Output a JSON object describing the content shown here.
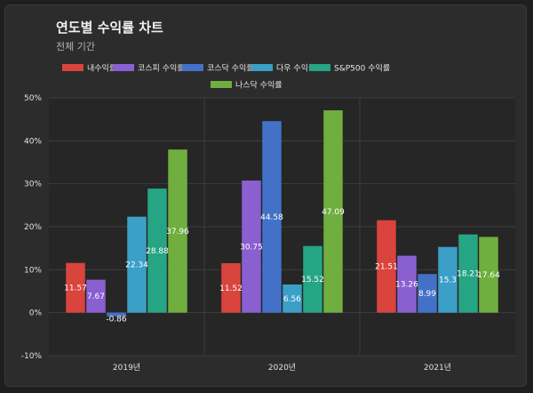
{
  "header": {
    "title": "연도별 수익률 차트",
    "subtitle": "전체 기간"
  },
  "chart_data": {
    "type": "bar",
    "title": "연도별 수익률 차트",
    "subtitle": "전체 기간",
    "categories": [
      "2019년",
      "2020년",
      "2021년"
    ],
    "series": [
      {
        "name": "내수익률",
        "color": "#d9443c",
        "values": [
          11.57,
          11.52,
          21.51
        ]
      },
      {
        "name": "코스피 수익률",
        "color": "#8a5fd0",
        "values": [
          7.67,
          30.75,
          13.26
        ]
      },
      {
        "name": "코스닥 수익률",
        "color": "#4471c8",
        "values": [
          -0.86,
          44.58,
          8.99
        ]
      },
      {
        "name": "다우 수익률",
        "color": "#3b9fc8",
        "values": [
          22.34,
          6.56,
          15.3
        ]
      },
      {
        "name": "S&P500 수익률",
        "color": "#26a584",
        "values": [
          28.88,
          15.52,
          18.21
        ]
      },
      {
        "name": "나스닥 수익률",
        "color": "#6fae3f",
        "values": [
          37.96,
          47.09,
          17.64
        ]
      }
    ],
    "data_labels": [
      [
        "11.57",
        "7.67",
        "-0.86",
        "22.34",
        "28.88",
        "37.96"
      ],
      [
        "11.52",
        "30.75",
        "44.58",
        "6.56",
        "15.52",
        "47.09"
      ],
      [
        "21.51",
        "13.26",
        "8.99",
        "15.3",
        "18.21",
        "17.64"
      ]
    ],
    "ylim": [
      -10,
      50
    ],
    "yticks": [
      "50%",
      "40%",
      "30%",
      "20%",
      "10%",
      "0%",
      "-10%"
    ],
    "ytick_values": [
      50,
      40,
      30,
      20,
      10,
      0,
      -10
    ],
    "grid": true,
    "legend_position": "top"
  }
}
